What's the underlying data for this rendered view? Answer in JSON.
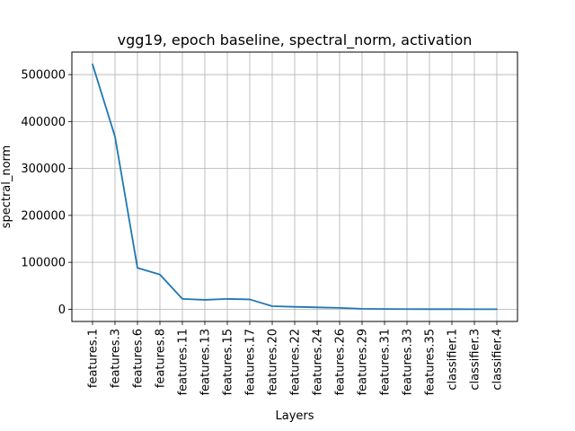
{
  "chart_data": {
    "type": "line",
    "title": "vgg19, epoch baseline, spectral_norm, activation",
    "xlabel": "Layers",
    "ylabel": "spectral_norm",
    "categories": [
      "features.1",
      "features.3",
      "features.6",
      "features.8",
      "features.11",
      "features.13",
      "features.15",
      "features.17",
      "features.20",
      "features.22",
      "features.24",
      "features.26",
      "features.29",
      "features.31",
      "features.33",
      "features.35",
      "classifier.1",
      "classifier.3",
      "classifier.4"
    ],
    "series": [
      {
        "values": [
          522000,
          368000,
          88000,
          74000,
          22000,
          20000,
          22000,
          21000,
          6500,
          5200,
          4000,
          3000,
          1000,
          500,
          300,
          200,
          150,
          100,
          50
        ],
        "color": "#1f77b4"
      }
    ],
    "yticks": [
      0,
      100000,
      200000,
      300000,
      400000,
      500000
    ],
    "ytick_labels": [
      "0",
      "100000",
      "200000",
      "300000",
      "400000",
      "500000"
    ],
    "ylim": [
      -26000,
      548000
    ],
    "grid": true,
    "legend": "none"
  }
}
